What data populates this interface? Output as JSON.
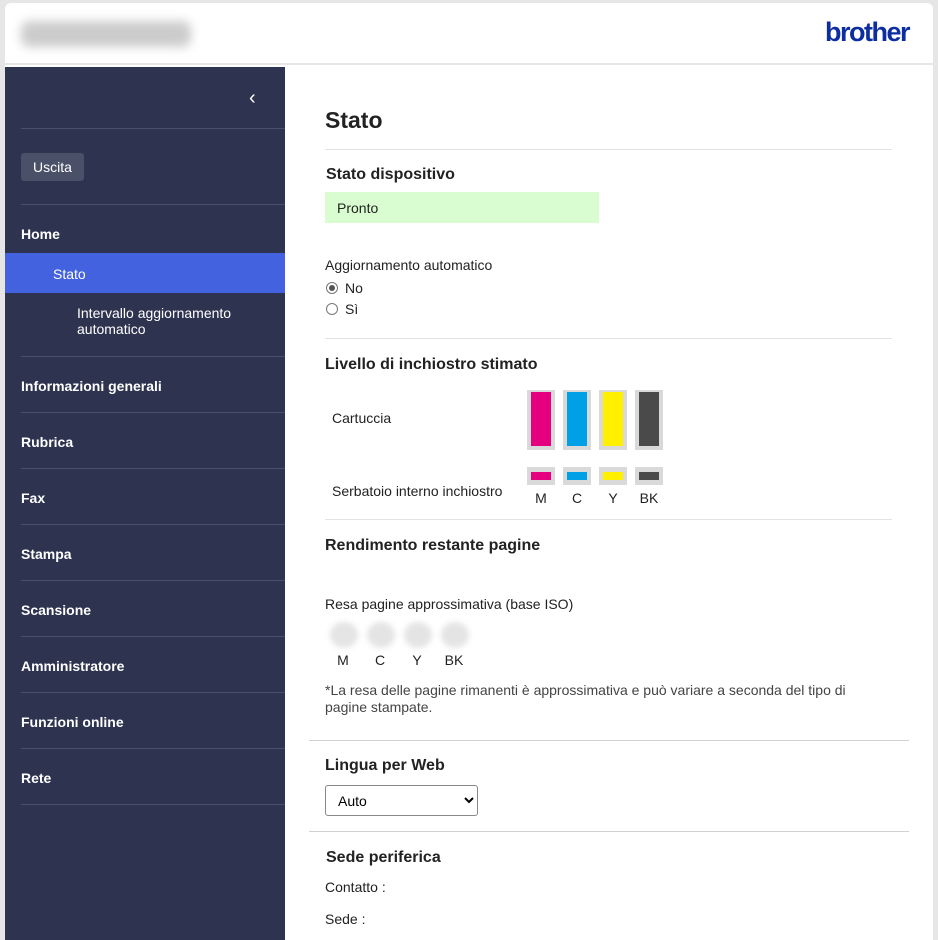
{
  "header": {
    "logo": "brother"
  },
  "sidebar": {
    "exit": "Uscita",
    "items": [
      "Home",
      "Informazioni generali",
      "Rubrica",
      "Fax",
      "Stampa",
      "Scansione",
      "Amministratore",
      "Funzioni online",
      "Rete"
    ],
    "sub_active": "Stato",
    "sub_item": "Intervallo aggiornamento automatico",
    "active_color": "#4362e0",
    "bg_color": "#2e3450"
  },
  "main": {
    "title": "Stato",
    "device_status": {
      "heading": "Stato dispositivo",
      "value": "Pronto"
    },
    "auto_update": {
      "label": "Aggiornamento automatico",
      "options": [
        "No",
        "Sì"
      ],
      "selected": "No"
    },
    "ink": {
      "heading": "Livello di inchiostro stimato",
      "cartridge_label": "Cartuccia",
      "tank_label": "Serbatoio interno inchiostro",
      "colors": [
        {
          "name": "M",
          "hex": "#e4007f",
          "cartridge_level": 100
        },
        {
          "name": "C",
          "hex": "#00a0e6",
          "cartridge_level": 100
        },
        {
          "name": "Y",
          "hex": "#fff000",
          "cartridge_level": 100
        },
        {
          "name": "BK",
          "hex": "#4a4a4a",
          "cartridge_level": 100
        }
      ]
    },
    "yield": {
      "heading": "Rendimento restante pagine",
      "label": "Resa pagine approssimativa (base ISO)",
      "colors": [
        "M",
        "C",
        "Y",
        "BK"
      ],
      "note": "*La resa delle pagine rimanenti è approssimativa e può variare a seconda del tipo di pagine stampate."
    },
    "language": {
      "heading": "Lingua per Web",
      "selected": "Auto"
    },
    "location": {
      "heading": "Sede periferica",
      "contact": "Contatto :",
      "site": "Sede :"
    }
  }
}
